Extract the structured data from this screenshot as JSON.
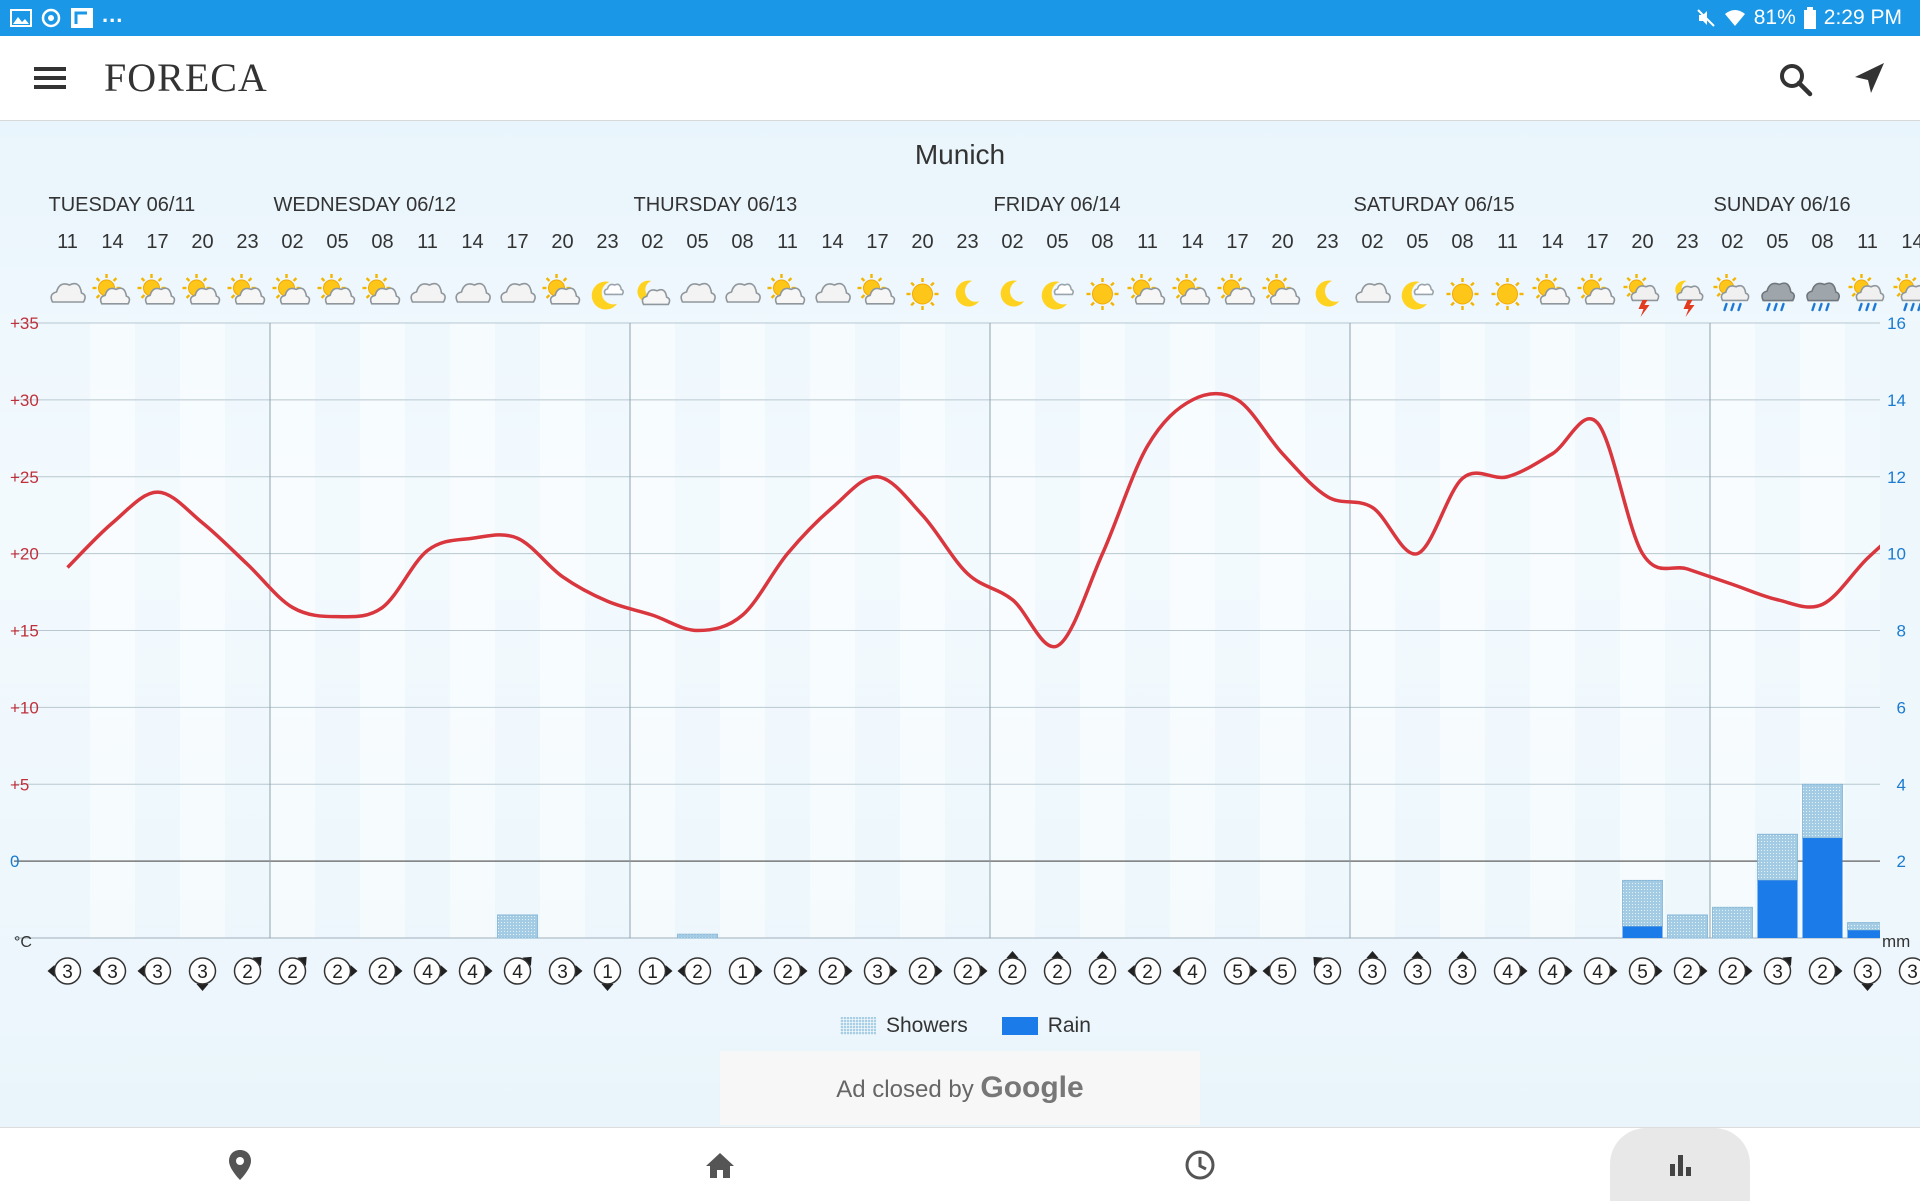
{
  "status_bar": {
    "battery": "81%",
    "time": "2:29 PM",
    "overflow": "..."
  },
  "app": {
    "logo": "FORECA"
  },
  "city": "Munich",
  "days": [
    "TUESDAY 06/11",
    "WEDNESDAY 06/12",
    "THURSDAY 06/13",
    "FRIDAY 06/14",
    "SATURDAY 06/15",
    "SUNDAY 06/16"
  ],
  "hours": [
    "11",
    "14",
    "17",
    "20",
    "23",
    "02",
    "05",
    "08",
    "11",
    "14",
    "17",
    "20",
    "23",
    "02",
    "05",
    "08",
    "11",
    "14",
    "17",
    "20",
    "23",
    "02",
    "05",
    "08",
    "11",
    "14",
    "17",
    "20",
    "23",
    "02",
    "05",
    "08",
    "11",
    "14",
    "17",
    "20",
    "23",
    "02",
    "05",
    "08",
    "11",
    "14"
  ],
  "weather_icons": [
    "cloudy",
    "partly-cloudy-day",
    "partly-cloudy-day",
    "partly-cloudy-day",
    "partly-cloudy-day",
    "partly-cloudy-day",
    "partly-cloudy-day",
    "partly-cloudy-day",
    "cloudy",
    "cloudy",
    "cloudy",
    "partly-cloudy-day",
    "clear-night-cloud",
    "partly-cloudy-night",
    "cloudy",
    "cloudy",
    "partly-cloudy-day",
    "cloudy",
    "partly-cloudy-day",
    "sunny",
    "clear-night",
    "clear-night",
    "clear-night-cloud",
    "sunny",
    "partly-cloudy-day",
    "partly-cloudy-day",
    "partly-cloudy-day",
    "partly-cloudy-day",
    "clear-night",
    "cloudy",
    "clear-night-cloud",
    "sunny",
    "sunny",
    "partly-cloudy-day",
    "partly-cloudy-day",
    "thunderstorm",
    "thunderstorm-night",
    "rain-showers",
    "rain",
    "rain",
    "rain-showers",
    "rain-showers"
  ],
  "wind_speeds": [
    "3",
    "3",
    "3",
    "3",
    "2",
    "2",
    "2",
    "2",
    "4",
    "4",
    "4",
    "3",
    "1",
    "1",
    "2",
    "1",
    "2",
    "2",
    "3",
    "2",
    "2",
    "2",
    "2",
    "2",
    "2",
    "4",
    "5",
    "5",
    "3",
    "3",
    "3",
    "3",
    "4",
    "4",
    "4",
    "5",
    "2",
    "2",
    "3",
    "2",
    "3",
    "3"
  ],
  "wind_directions": [
    "W",
    "W",
    "W",
    "S",
    "NE",
    "NE",
    "E",
    "E",
    "E",
    "E",
    "NE",
    "E",
    "S",
    "E",
    "W",
    "E",
    "E",
    "E",
    "E",
    "E",
    "E",
    "N",
    "N",
    "N",
    "W",
    "W",
    "E",
    "W",
    "NW",
    "N",
    "N",
    "N",
    "E",
    "E",
    "E",
    "E",
    "E",
    "E",
    "NE",
    "E",
    "S",
    "E"
  ],
  "chart_data": {
    "type": "line",
    "x": [
      "06/11 11",
      "06/11 14",
      "06/11 17",
      "06/11 20",
      "06/11 23",
      "06/12 02",
      "06/12 05",
      "06/12 08",
      "06/12 11",
      "06/12 14",
      "06/12 17",
      "06/12 20",
      "06/12 23",
      "06/13 02",
      "06/13 05",
      "06/13 08",
      "06/13 11",
      "06/13 14",
      "06/13 17",
      "06/13 20",
      "06/13 23",
      "06/14 02",
      "06/14 05",
      "06/14 08",
      "06/14 11",
      "06/14 14",
      "06/14 17",
      "06/14 20",
      "06/14 23",
      "06/15 02",
      "06/15 05",
      "06/15 08",
      "06/15 11",
      "06/15 14",
      "06/15 17",
      "06/15 20",
      "06/15 23",
      "06/16 02",
      "06/16 05",
      "06/16 08",
      "06/16 11",
      "06/16 14"
    ],
    "series": [
      {
        "name": "temperature",
        "axis": "left",
        "unit": "°C",
        "values": [
          19.1,
          22,
          24,
          22,
          19.3,
          16.5,
          15.9,
          16.5,
          20.2,
          21,
          21,
          18.5,
          16.9,
          16,
          15,
          16,
          20,
          23,
          25,
          22.5,
          18.7,
          17,
          14,
          20,
          27,
          30,
          30,
          26.5,
          23.7,
          23,
          20,
          24.9,
          25,
          26.5,
          28.5,
          20,
          19,
          18,
          17,
          16.7,
          19.7,
          22.3
        ]
      },
      {
        "name": "Showers",
        "axis": "right",
        "unit": "mm",
        "values": [
          0,
          0,
          0,
          0,
          0,
          0,
          0,
          0,
          0,
          0,
          0.6,
          0,
          0,
          0,
          0.1,
          0,
          0,
          0,
          0,
          0,
          0,
          0,
          0,
          0,
          0,
          0,
          0,
          0,
          0,
          0,
          0,
          0,
          0,
          0,
          0,
          1.2,
          0.6,
          0.8,
          1.2,
          1.4,
          0.2,
          0.3
        ]
      },
      {
        "name": "Rain",
        "axis": "right",
        "unit": "mm",
        "values": [
          0,
          0,
          0,
          0,
          0,
          0,
          0,
          0,
          0,
          0,
          0,
          0,
          0,
          0,
          0,
          0,
          0,
          0,
          0,
          0,
          0,
          0,
          0,
          0,
          0,
          0,
          0,
          0,
          0,
          0,
          0,
          0,
          0,
          0,
          0,
          0.3,
          0,
          0,
          1.5,
          2.6,
          0.2,
          0.2
        ]
      }
    ],
    "yaxis_left": {
      "ticks": [
        "+35",
        "+30",
        "+25",
        "+20",
        "+15",
        "+10",
        "+5",
        "0"
      ],
      "unit_label": "°C",
      "range": [
        -5,
        35
      ]
    },
    "yaxis_right": {
      "ticks": [
        "16",
        "14",
        "12",
        "10",
        "8",
        "6",
        "4",
        "2"
      ],
      "unit_label": "mm",
      "range": [
        0,
        16
      ]
    },
    "legend": [
      "Showers",
      "Rain"
    ],
    "colors": {
      "temperature": "#d9363e",
      "showers": "#a9cfe6",
      "rain": "#1b7be8",
      "left_axis": "#c0303a",
      "right_axis": "#1a7bd0"
    }
  },
  "ad": {
    "text": "Ad closed by",
    "brand": "Google"
  },
  "bottom_nav": [
    "places",
    "home",
    "hourly",
    "chart"
  ]
}
